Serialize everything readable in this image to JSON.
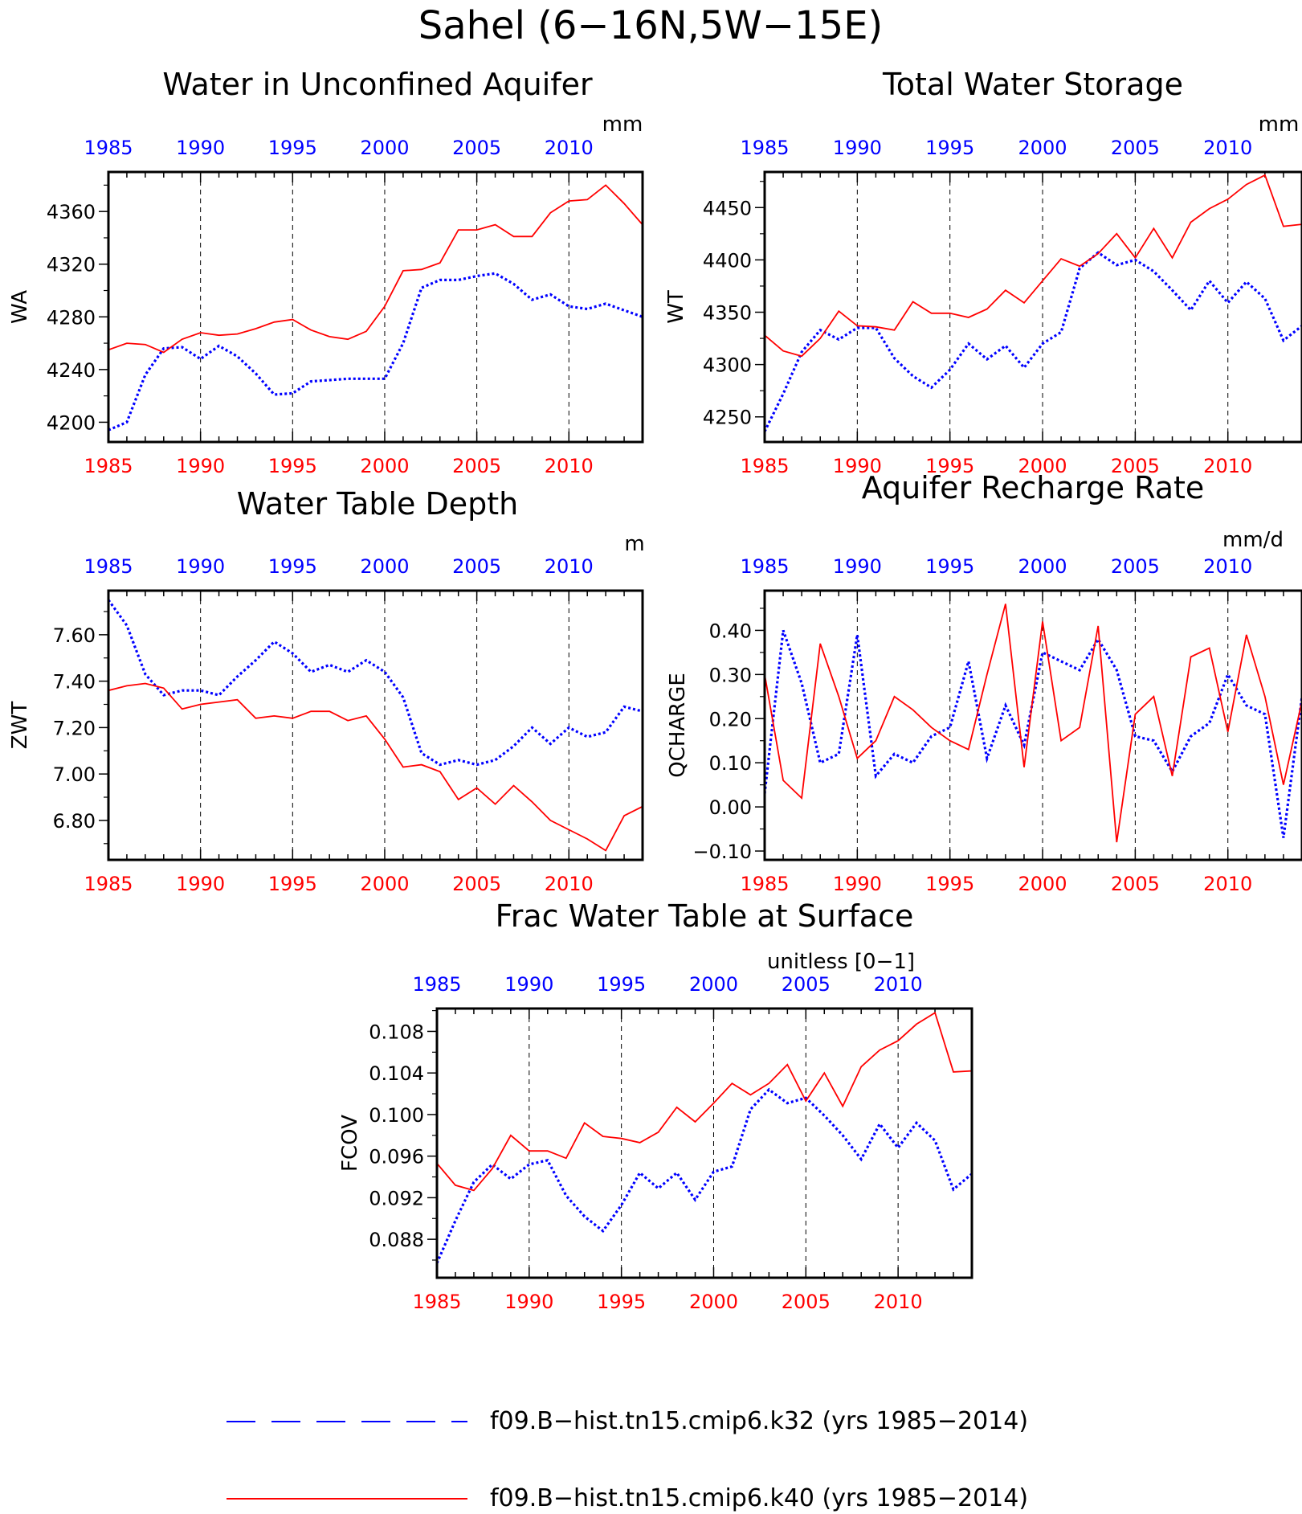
{
  "page": {
    "title": "Sahel (6−16N,5W−15E)"
  },
  "legend": {
    "entries": [
      {
        "label": "f09.B−hist.tn15.cmip6.k32 (yrs 1985−2014)",
        "color": "#0000ff",
        "style": "dashed"
      },
      {
        "label": "f09.B−hist.tn15.cmip6.k40 (yrs 1985−2014)",
        "color": "#ff0000",
        "style": "solid"
      }
    ]
  },
  "chart_data": [
    {
      "id": "wa",
      "type": "line",
      "title": "Water in Unconfined Aquifer",
      "ylabel": "WA",
      "units": "mm",
      "xlim": [
        1985,
        2014
      ],
      "ylim": [
        4185,
        4390
      ],
      "yticks": [
        4200,
        4240,
        4280,
        4320,
        4360
      ],
      "ytick_labels": [
        "4200",
        "4240",
        "4280",
        "4320",
        "4360"
      ],
      "xticks": [
        1985,
        1990,
        1995,
        2000,
        2005,
        2010
      ],
      "x": [
        1985,
        1986,
        1987,
        1988,
        1989,
        1990,
        1991,
        1992,
        1993,
        1994,
        1995,
        1996,
        1997,
        1998,
        1999,
        2000,
        2001,
        2002,
        2003,
        2004,
        2005,
        2006,
        2007,
        2008,
        2009,
        2010,
        2011,
        2012,
        2013,
        2014
      ],
      "series": [
        {
          "name": "f09.B−hist.tn15.cmip6.k32 (yrs 1985−2014)",
          "color": "#0000ff",
          "style": "dotted",
          "values": [
            4194,
            4200,
            4236,
            4256,
            4257,
            4248,
            4258,
            4250,
            4237,
            4221,
            4222,
            4231,
            4232,
            4233,
            4233,
            4233,
            4260,
            4302,
            4308,
            4308,
            4311,
            4313,
            4305,
            4293,
            4297,
            4288,
            4286,
            4290,
            4285,
            4280
          ]
        },
        {
          "name": "f09.B−hist.tn15.cmip6.k40 (yrs 1985−2014)",
          "color": "#ff0000",
          "style": "solid",
          "values": [
            4255,
            4260,
            4259,
            4253,
            4263,
            4268,
            4266,
            4267,
            4271,
            4276,
            4278,
            4270,
            4265,
            4263,
            4269,
            4288,
            4315,
            4316,
            4321,
            4346,
            4346,
            4350,
            4341,
            4341,
            4359,
            4368,
            4369,
            4380,
            4366,
            4350
          ]
        }
      ]
    },
    {
      "id": "wt",
      "type": "line",
      "title": "Total Water Storage",
      "ylabel": "WT",
      "units": "mm",
      "xlim": [
        1985,
        2014
      ],
      "ylim": [
        4226,
        4484
      ],
      "yticks": [
        4250,
        4300,
        4350,
        4400,
        4450
      ],
      "ytick_labels": [
        "4250",
        "4300",
        "4350",
        "4400",
        "4450"
      ],
      "xticks": [
        1985,
        1990,
        1995,
        2000,
        2005,
        2010
      ],
      "x": [
        1985,
        1986,
        1987,
        1988,
        1989,
        1990,
        1991,
        1992,
        1993,
        1994,
        1995,
        1996,
        1997,
        1998,
        1999,
        2000,
        2001,
        2002,
        2003,
        2004,
        2005,
        2006,
        2007,
        2008,
        2009,
        2010,
        2011,
        2012,
        2013,
        2014
      ],
      "series": [
        {
          "name": "f09.B−hist.tn15.cmip6.k32 (yrs 1985−2014)",
          "color": "#0000ff",
          "style": "dotted",
          "values": [
            4236,
            4272,
            4312,
            4333,
            4324,
            4335,
            4335,
            4306,
            4289,
            4278,
            4295,
            4320,
            4305,
            4318,
            4297,
            4320,
            4331,
            4392,
            4407,
            4395,
            4400,
            4389,
            4371,
            4352,
            4380,
            4359,
            4379,
            4363,
            4323,
            4337
          ]
        },
        {
          "name": "f09.B−hist.tn15.cmip6.k40 (yrs 1985−2014)",
          "color": "#ff0000",
          "style": "solid",
          "values": [
            4328,
            4313,
            4308,
            4325,
            4351,
            4337,
            4336,
            4333,
            4360,
            4349,
            4349,
            4345,
            4353,
            4371,
            4359,
            4380,
            4401,
            4394,
            4406,
            4425,
            4402,
            4430,
            4402,
            4436,
            4449,
            4458,
            4472,
            4481,
            4432,
            4434
          ]
        }
      ]
    },
    {
      "id": "zwt",
      "type": "line",
      "title": "Water Table Depth",
      "ylabel": "ZWT",
      "units": "m",
      "xlim": [
        1985,
        2014
      ],
      "ylim": [
        6.63,
        7.79
      ],
      "yticks": [
        6.8,
        7.0,
        7.2,
        7.4,
        7.6
      ],
      "ytick_labels": [
        "6.80",
        "7.00",
        "7.20",
        "7.40",
        "7.60"
      ],
      "xticks": [
        1985,
        1990,
        1995,
        2000,
        2005,
        2010
      ],
      "x": [
        1985,
        1986,
        1987,
        1988,
        1989,
        1990,
        1991,
        1992,
        1993,
        1994,
        1995,
        1996,
        1997,
        1998,
        1999,
        2000,
        2001,
        2002,
        2003,
        2004,
        2005,
        2006,
        2007,
        2008,
        2009,
        2010,
        2011,
        2012,
        2013,
        2014
      ],
      "series": [
        {
          "name": "f09.B−hist.tn15.cmip6.k32 (yrs 1985−2014)",
          "color": "#0000ff",
          "style": "dotted",
          "values": [
            7.75,
            7.64,
            7.43,
            7.34,
            7.36,
            7.36,
            7.34,
            7.42,
            7.49,
            7.57,
            7.52,
            7.44,
            7.47,
            7.44,
            7.49,
            7.44,
            7.33,
            7.09,
            7.04,
            7.06,
            7.04,
            7.06,
            7.12,
            7.2,
            7.13,
            7.2,
            7.16,
            7.18,
            7.29,
            7.27
          ]
        },
        {
          "name": "f09.B−hist.tn15.cmip6.k40 (yrs 1985−2014)",
          "color": "#ff0000",
          "style": "solid",
          "values": [
            7.36,
            7.38,
            7.39,
            7.37,
            7.28,
            7.3,
            7.31,
            7.32,
            7.24,
            7.25,
            7.24,
            7.27,
            7.27,
            7.23,
            7.25,
            7.15,
            7.03,
            7.04,
            7.01,
            6.89,
            6.94,
            6.87,
            6.95,
            6.88,
            6.8,
            6.76,
            6.72,
            6.67,
            6.82,
            6.86
          ]
        }
      ]
    },
    {
      "id": "qcharge",
      "type": "line",
      "title": "Aquifer Recharge Rate",
      "ylabel": "QCHARGE",
      "units": "mm/d",
      "xlim": [
        1985,
        2014
      ],
      "ylim": [
        -0.12,
        0.49
      ],
      "yticks": [
        -0.1,
        0.0,
        0.1,
        0.2,
        0.3,
        0.4
      ],
      "ytick_labels": [
        "−0.10",
        "0.00",
        "0.10",
        "0.20",
        "0.30",
        "0.40"
      ],
      "xticks": [
        1985,
        1990,
        1995,
        2000,
        2005,
        2010
      ],
      "x": [
        1985,
        1986,
        1987,
        1988,
        1989,
        1990,
        1991,
        1992,
        1993,
        1994,
        1995,
        1996,
        1997,
        1998,
        1999,
        2000,
        2001,
        2002,
        2003,
        2004,
        2005,
        2006,
        2007,
        2008,
        2009,
        2010,
        2011,
        2012,
        2013,
        2014
      ],
      "series": [
        {
          "name": "f09.B−hist.tn15.cmip6.k32 (yrs 1985−2014)",
          "color": "#0000ff",
          "style": "dotted",
          "values": [
            0.03,
            0.4,
            0.28,
            0.1,
            0.12,
            0.39,
            0.07,
            0.12,
            0.1,
            0.16,
            0.18,
            0.33,
            0.11,
            0.23,
            0.14,
            0.35,
            0.33,
            0.31,
            0.38,
            0.31,
            0.16,
            0.15,
            0.08,
            0.16,
            0.19,
            0.3,
            0.23,
            0.21,
            -0.07,
            0.25
          ]
        },
        {
          "name": "f09.B−hist.tn15.cmip6.k40 (yrs 1985−2014)",
          "color": "#ff0000",
          "style": "solid",
          "values": [
            0.3,
            0.06,
            0.02,
            0.37,
            0.25,
            0.11,
            0.15,
            0.25,
            0.22,
            0.18,
            0.15,
            0.13,
            0.3,
            0.46,
            0.09,
            0.42,
            0.15,
            0.18,
            0.41,
            -0.08,
            0.21,
            0.25,
            0.07,
            0.34,
            0.36,
            0.17,
            0.39,
            0.25,
            0.05,
            0.24
          ]
        }
      ]
    },
    {
      "id": "fcov",
      "type": "line",
      "title": "Frac Water Table at Surface",
      "ylabel": "FCOV",
      "units": "unitless [0−1]",
      "xlim": [
        1985,
        2014
      ],
      "ylim": [
        0.0843,
        0.1102
      ],
      "yticks": [
        0.088,
        0.092,
        0.096,
        0.1,
        0.104,
        0.108
      ],
      "ytick_labels": [
        "0.088",
        "0.092",
        "0.096",
        "0.100",
        "0.104",
        "0.108"
      ],
      "xticks": [
        1985,
        1990,
        1995,
        2000,
        2005,
        2010
      ],
      "x": [
        1985,
        1986,
        1987,
        1988,
        1989,
        1990,
        1991,
        1992,
        1993,
        1994,
        1995,
        1996,
        1997,
        1998,
        1999,
        2000,
        2001,
        2002,
        2003,
        2004,
        2005,
        2006,
        2007,
        2008,
        2009,
        2010,
        2011,
        2012,
        2013,
        2014
      ],
      "series": [
        {
          "name": "f09.B−hist.tn15.cmip6.k32 (yrs 1985−2014)",
          "color": "#0000ff",
          "style": "dotted",
          "values": [
            0.0857,
            0.0898,
            0.0935,
            0.0952,
            0.0938,
            0.0952,
            0.0956,
            0.0922,
            0.0902,
            0.0888,
            0.0913,
            0.0944,
            0.0929,
            0.0944,
            0.0918,
            0.0945,
            0.095,
            0.1005,
            0.1024,
            0.1011,
            0.1016,
            0.0999,
            0.098,
            0.0957,
            0.0991,
            0.0968,
            0.0992,
            0.0975,
            0.0928,
            0.0943
          ]
        },
        {
          "name": "f09.B−hist.tn15.cmip6.k40 (yrs 1985−2014)",
          "color": "#ff0000",
          "style": "solid",
          "values": [
            0.0953,
            0.0932,
            0.0927,
            0.0948,
            0.098,
            0.0965,
            0.0965,
            0.0958,
            0.0992,
            0.0979,
            0.0977,
            0.0973,
            0.0983,
            0.1007,
            0.0993,
            0.1011,
            0.103,
            0.1019,
            0.103,
            0.1048,
            0.1013,
            0.104,
            0.1008,
            0.1046,
            0.1062,
            0.1071,
            0.1087,
            0.1098,
            0.1041,
            0.1042
          ]
        }
      ]
    }
  ]
}
